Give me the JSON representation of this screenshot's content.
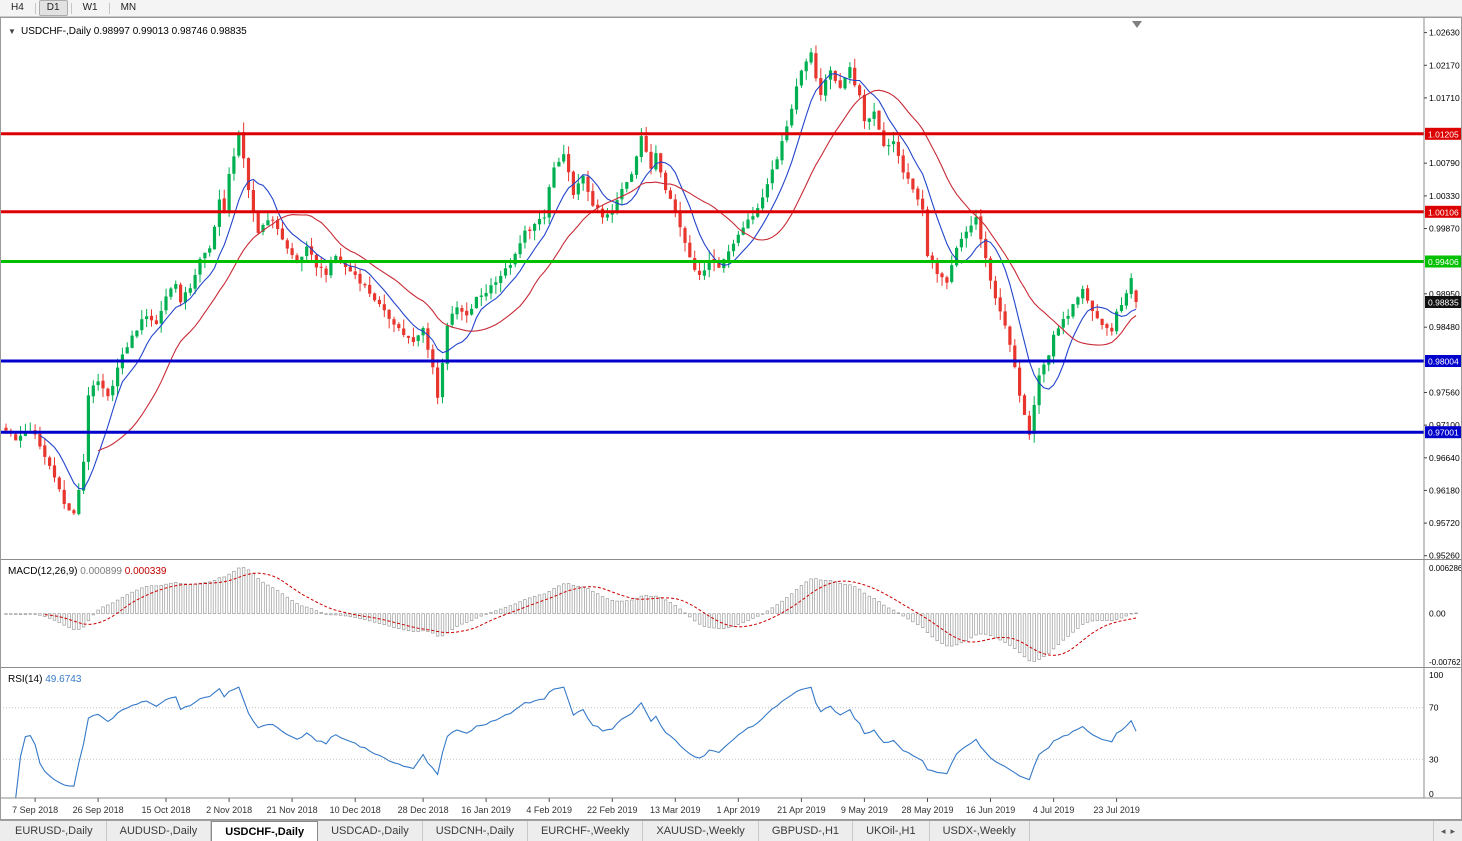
{
  "toolbar": {
    "timeframes": [
      {
        "label": "H4",
        "active": false
      },
      {
        "label": "D1",
        "active": true
      },
      {
        "label": "W1",
        "active": false
      },
      {
        "label": "MN",
        "active": false
      }
    ]
  },
  "tabs": {
    "items": [
      {
        "label": "EURUSD-,Daily",
        "active": false
      },
      {
        "label": "AUDUSD-,Daily",
        "active": false
      },
      {
        "label": "USDCHF-,Daily",
        "active": true
      },
      {
        "label": "USDCAD-,Daily",
        "active": false
      },
      {
        "label": "USDCNH-,Daily",
        "active": false
      },
      {
        "label": "EURCHF-,Weekly",
        "active": false
      },
      {
        "label": "XAUUSD-,Weekly",
        "active": false
      },
      {
        "label": "GBPUSD-,H1",
        "active": false
      },
      {
        "label": "UKOil-,H1",
        "active": false
      },
      {
        "label": "USDX-,Weekly",
        "active": false
      }
    ],
    "scroll_left": "◂",
    "scroll_right": "▸"
  },
  "chart_data": [
    {
      "type": "candlestick",
      "title": "USDCHF-,Daily",
      "menu_icon": "▼",
      "ohlc": {
        "open": 0.98997,
        "high": 0.99013,
        "low": 0.98746,
        "close": 0.98835
      },
      "up_color": "#00b050",
      "down_color": "#e8352e",
      "ma_fast_color": "#2244cc",
      "ma_slow_color": "#c82a36",
      "y_axis": {
        "min": 0.952,
        "max": 1.0278,
        "ticks": [
          1.0263,
          1.0217,
          1.0171,
          1.0125,
          1.0079,
          1.0033,
          0.9987,
          0.9941,
          0.9895,
          0.9848,
          0.9802,
          0.9756,
          0.971,
          0.9664,
          0.9618,
          0.9572,
          0.9526
        ]
      },
      "levels": [
        {
          "name": "resistance-1",
          "price": 1.01205,
          "color": "#dd0000"
        },
        {
          "name": "resistance-2",
          "price": 1.00106,
          "color": "#dd0000"
        },
        {
          "name": "pivot-green",
          "price": 0.99406,
          "color": "#00c000"
        },
        {
          "name": "support-1",
          "price": 0.98004,
          "color": "#0000cc"
        },
        {
          "name": "support-2",
          "price": 0.97001,
          "color": "#0000cc"
        }
      ],
      "n_bars": 234,
      "close_path": [
        [
          0,
          0.9705
        ],
        [
          2,
          0.9688
        ],
        [
          4,
          0.9703
        ],
        [
          6,
          0.9695
        ],
        [
          8,
          0.9665
        ],
        [
          10,
          0.964
        ],
        [
          12,
          0.9598
        ],
        [
          14,
          0.9583
        ],
        [
          15,
          0.962
        ],
        [
          16,
          0.9659
        ],
        [
          17,
          0.9754
        ],
        [
          19,
          0.977
        ],
        [
          21,
          0.9748
        ],
        [
          23,
          0.979
        ],
        [
          25,
          0.9822
        ],
        [
          27,
          0.9846
        ],
        [
          29,
          0.9866
        ],
        [
          31,
          0.9852
        ],
        [
          33,
          0.9892
        ],
        [
          35,
          0.9912
        ],
        [
          36,
          0.9882
        ],
        [
          38,
          0.9905
        ],
        [
          40,
          0.9942
        ],
        [
          42,
          0.9958
        ],
        [
          44,
          1.0028
        ],
        [
          45,
          1.0008
        ],
        [
          46,
          1.0062
        ],
        [
          48,
          1.0122
        ],
        [
          49,
          1.0082
        ],
        [
          50,
          1.0038
        ],
        [
          52,
          0.9982
        ],
        [
          54,
          1.0002
        ],
        [
          56,
          0.9988
        ],
        [
          58,
          0.9958
        ],
        [
          60,
          0.994
        ],
        [
          62,
          0.9958
        ],
        [
          64,
          0.9935
        ],
        [
          66,
          0.9925
        ],
        [
          68,
          0.9948
        ],
        [
          70,
          0.9932
        ],
        [
          72,
          0.9922
        ],
        [
          74,
          0.9905
        ],
        [
          76,
          0.9888
        ],
        [
          78,
          0.9868
        ],
        [
          80,
          0.9855
        ],
        [
          82,
          0.9838
        ],
        [
          84,
          0.9825
        ],
        [
          86,
          0.9846
        ],
        [
          88,
          0.9792
        ],
        [
          89,
          0.9748
        ],
        [
          90,
          0.98
        ],
        [
          91,
          0.9852
        ],
        [
          93,
          0.9875
        ],
        [
          95,
          0.9862
        ],
        [
          97,
          0.9888
        ],
        [
          99,
          0.9898
        ],
        [
          101,
          0.9915
        ],
        [
          103,
          0.9928
        ],
        [
          105,
          0.9948
        ],
        [
          107,
          0.9982
        ],
        [
          109,
          0.9992
        ],
        [
          111,
          1.0002
        ],
        [
          112,
          1.0045
        ],
        [
          113,
          1.0072
        ],
        [
          115,
          1.0088
        ],
        [
          117,
          1.0038
        ],
        [
          119,
          1.0058
        ],
        [
          121,
          1.0022
        ],
        [
          123,
          1.0002
        ],
        [
          125,
          1.0008
        ],
        [
          127,
          1.0042
        ],
        [
          129,
          1.0066
        ],
        [
          131,
          1.0118
        ],
        [
          132,
          1.0092
        ],
        [
          133,
          1.0072
        ],
        [
          134,
          1.0095
        ],
        [
          136,
          1.0045
        ],
        [
          138,
          1.0012
        ],
        [
          140,
          0.9968
        ],
        [
          142,
          0.9932
        ],
        [
          143,
          0.9918
        ],
        [
          145,
          0.9945
        ],
        [
          147,
          0.9932
        ],
        [
          149,
          0.9958
        ],
        [
          151,
          0.9975
        ],
        [
          153,
          1.0002
        ],
        [
          155,
          1.0012
        ],
        [
          157,
          1.0052
        ],
        [
          159,
          1.0088
        ],
        [
          161,
          1.0132
        ],
        [
          163,
          1.0185
        ],
        [
          164,
          1.0212
        ],
        [
          166,
          1.0232
        ],
        [
          167,
          1.0195
        ],
        [
          168,
          1.0178
        ],
        [
          170,
          1.0208
        ],
        [
          172,
          1.0188
        ],
        [
          174,
          1.0212
        ],
        [
          176,
          1.0172
        ],
        [
          177,
          1.0135
        ],
        [
          179,
          1.0152
        ],
        [
          181,
          1.0105
        ],
        [
          183,
          1.0108
        ],
        [
          185,
          1.0068
        ],
        [
          187,
          1.0042
        ],
        [
          189,
          1.0012
        ],
        [
          190,
          0.9952
        ],
        [
          192,
          0.9922
        ],
        [
          194,
          0.9908
        ],
        [
          196,
          0.9958
        ],
        [
          198,
          0.9982
        ],
        [
          200,
          1.0002
        ],
        [
          201,
          0.9972
        ],
        [
          202,
          0.9942
        ],
        [
          203,
          0.9912
        ],
        [
          205,
          0.9872
        ],
        [
          207,
          0.9822
        ],
        [
          209,
          0.9755
        ],
        [
          211,
          0.97
        ],
        [
          212,
          0.9742
        ],
        [
          213,
          0.9782
        ],
        [
          215,
          0.9808
        ],
        [
          216,
          0.9838
        ],
        [
          218,
          0.9856
        ],
        [
          220,
          0.9878
        ],
        [
          222,
          0.9898
        ],
        [
          224,
          0.9868
        ],
        [
          226,
          0.9852
        ],
        [
          228,
          0.9842
        ],
        [
          229,
          0.9868
        ],
        [
          231,
          0.9895
        ],
        [
          232,
          0.9918
        ],
        [
          233,
          0.98835
        ]
      ],
      "x_axis_ticks": [
        {
          "bar": 6,
          "label": "7 Sep 2018"
        },
        {
          "bar": 19,
          "label": "26 Sep 2018"
        },
        {
          "bar": 33,
          "label": "15 Oct 2018"
        },
        {
          "bar": 46,
          "label": "2 Nov 2018"
        },
        {
          "bar": 59,
          "label": "21 Nov 2018"
        },
        {
          "bar": 72,
          "label": "10 Dec 2018"
        },
        {
          "bar": 86,
          "label": "28 Dec 2018"
        },
        {
          "bar": 99,
          "label": "16 Jan 2019"
        },
        {
          "bar": 112,
          "label": "4 Feb 2019"
        },
        {
          "bar": 125,
          "label": "22 Feb 2019"
        },
        {
          "bar": 138,
          "label": "13 Mar 2019"
        },
        {
          "bar": 151,
          "label": "1 Apr 2019"
        },
        {
          "bar": 164,
          "label": "21 Apr 2019"
        },
        {
          "bar": 177,
          "label": "9 May 2019"
        },
        {
          "bar": 190,
          "label": "28 May 2019"
        },
        {
          "bar": 203,
          "label": "16 Jun 2019"
        },
        {
          "bar": 216,
          "label": "4 Jul 2019"
        },
        {
          "bar": 229,
          "label": "23 Jul 2019"
        }
      ]
    },
    {
      "type": "macd",
      "title": "MACD(12,26,9)",
      "params": [
        12,
        26,
        9
      ],
      "values": [
        "0.000899",
        "0.000339"
      ],
      "axis_labels": [
        "0.006286",
        "0.00",
        "-0.00762"
      ],
      "histogram_color": "#9a9a9a",
      "signal_color": "#cc0000"
    },
    {
      "type": "rsi",
      "title": "RSI(14)",
      "period": 14,
      "value": "49.6743",
      "levels": [
        70,
        30
      ],
      "axis_labels": [
        "100",
        "70",
        "30",
        "0"
      ],
      "line_color": "#3579c8",
      "level_color": "#c0c0c0"
    }
  ]
}
